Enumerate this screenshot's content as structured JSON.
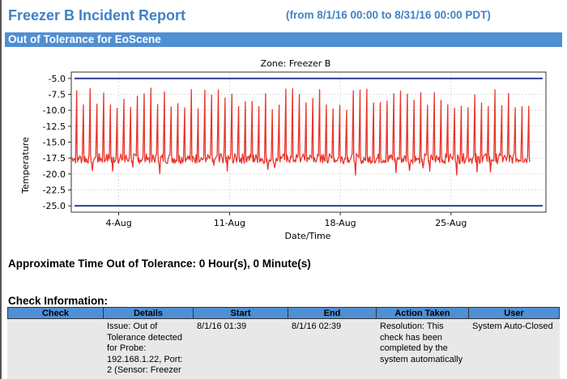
{
  "header": {
    "title": "Freezer B Incident Report",
    "range": "(from 8/1/16 00:00 to 8/31/16 00:00 PDT)"
  },
  "section": {
    "title": "Out of Tolerance for EoScene"
  },
  "summary": {
    "text": "Approximate Time Out of Tolerance: 0 Hour(s), 0 Minute(s)"
  },
  "checks": {
    "heading": "Check Information:",
    "columns": [
      "Check",
      "Details",
      "Start",
      "End",
      "Action Taken",
      "User"
    ],
    "rows": [
      {
        "check": "",
        "details": "Issue: Out of Tolerance detected for Probe: 192.168.1.22, Port: 2 (Sensor: Freezer",
        "start": "8/1/16 01:39",
        "end": "8/1/16 02:39",
        "action": "Resolution: This check has been completed by the system automatically",
        "user": "System Auto-Closed"
      }
    ]
  },
  "chart_data": {
    "type": "line",
    "title": "Zone: Freezer B",
    "xlabel": "Date/Time",
    "ylabel": "Temperature",
    "xlim": [
      "2016-08-01",
      "2016-08-31"
    ],
    "ylim": [
      -26,
      -4
    ],
    "yticks": [
      -5.0,
      -7.5,
      -10.0,
      -12.5,
      -15.0,
      -17.5,
      -20.0,
      -22.5,
      -25.0
    ],
    "xticks": [
      "4-Aug",
      "11-Aug",
      "18-Aug",
      "25-Aug"
    ],
    "xtick_dates": [
      "2016-08-04",
      "2016-08-11",
      "2016-08-18",
      "2016-08-25"
    ],
    "grid": true,
    "series": [
      {
        "color": "#e8342a",
        "baseline_typical": -17.5,
        "min_typical": -20.0,
        "spike_peak_range": [
          -10.0,
          -6.5
        ],
        "spike_count": 68,
        "start": "2016-08-01",
        "end": "2016-08-30"
      }
    ],
    "reference_lines": [
      {
        "value": -5.0,
        "color": "#2f3f8f"
      },
      {
        "value": -25.0,
        "color": "#2f3f8f"
      }
    ]
  }
}
